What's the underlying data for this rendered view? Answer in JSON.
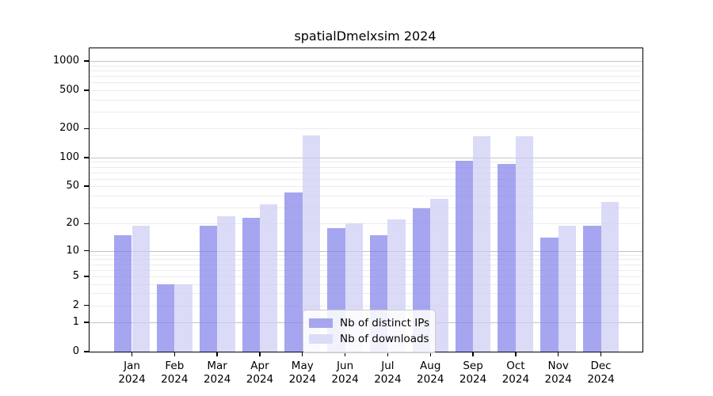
{
  "chart_data": {
    "type": "bar",
    "title": "spatialDmelxsim 2024",
    "categories": [
      "Jan 2024",
      "Feb 2024",
      "Mar 2024",
      "Apr 2024",
      "May 2024",
      "Jun 2024",
      "Jul 2024",
      "Aug 2024",
      "Sep 2024",
      "Oct 2024",
      "Nov 2024",
      "Dec 2024"
    ],
    "series": [
      {
        "name": "Nb of distinct IPs",
        "apparent_color": "#a6a6ef",
        "fill_rgba": "rgba(131,131,234,0.72)",
        "values": [
          15,
          4,
          19,
          23,
          43,
          18,
          15,
          29,
          93,
          85,
          14,
          19
        ]
      },
      {
        "name": "Nb of downloads",
        "apparent_color": "#dcdcf8",
        "fill_rgba": "rgba(205,205,245,0.72)",
        "values": [
          19,
          4,
          24,
          32,
          170,
          20,
          22,
          37,
          165,
          165,
          19,
          34
        ]
      }
    ],
    "yscale": "log10(value+1)",
    "y_ticks": [
      0,
      1,
      2,
      5,
      10,
      20,
      50,
      100,
      200,
      500,
      1000
    ],
    "y_major_gridlines": [
      1,
      10,
      100,
      1000
    ],
    "y_minor_gridlines": [
      2,
      3,
      4,
      5,
      6,
      7,
      8,
      9,
      20,
      30,
      40,
      50,
      60,
      70,
      80,
      90,
      200,
      300,
      400,
      500,
      600,
      700,
      800,
      900
    ],
    "ylim": [
      0,
      1380
    ],
    "xlabel": "",
    "ylabel": "",
    "grid": true,
    "legend_position": "bottom-center"
  },
  "legend": {
    "items": [
      "Nb of distinct IPs",
      "Nb of downloads"
    ]
  }
}
